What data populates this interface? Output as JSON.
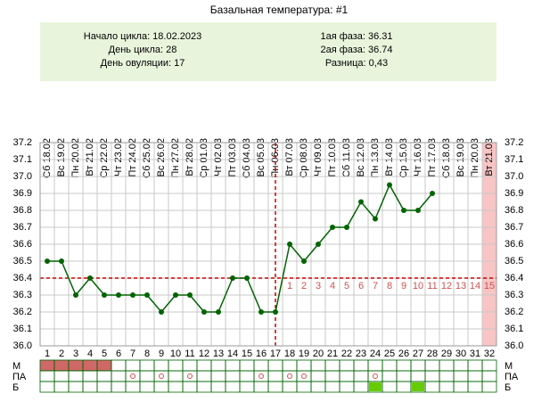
{
  "chart_data": {
    "type": "line",
    "title": "Базальная температура: #1",
    "info": {
      "left": [
        "Начало цикла: 18.02.2023",
        "День цикла: 28",
        "День овуляции: 17"
      ],
      "right": [
        "1ая фаза: 36.31",
        "2ая фаза: 36.74",
        "Разница: 0,43"
      ]
    },
    "categories": [
      "Сб 18.02",
      "Вс 19.02",
      "Пн 20.02",
      "Вт 21.02",
      "Ср 22.02",
      "Чт 23.02",
      "Пт 24.02",
      "Сб 25.02",
      "Вс 26.02",
      "Пн 27.02",
      "Вт 28.02",
      "Ср 01.03",
      "Чт 02.03",
      "Пт 03.03",
      "Сб 04.03",
      "Вс 05.03",
      "Пн 06.03",
      "Вт 07.03",
      "Ср 08.03",
      "Чт 09.03",
      "Пт 10.03",
      "Сб 11.03",
      "Вс 12.03",
      "Пн 13.03",
      "Вт 14.03",
      "Ср 15.03",
      "Чт 16.03",
      "Пт 17.03",
      "Сб 18.03",
      "Вс 19.03",
      "Пн 20.03",
      "Вт 21.03"
    ],
    "x": [
      1,
      2,
      3,
      4,
      5,
      6,
      7,
      8,
      9,
      10,
      11,
      12,
      13,
      14,
      15,
      16,
      17,
      18,
      19,
      20,
      21,
      22,
      23,
      24,
      25,
      26,
      27,
      28,
      29,
      30,
      31,
      32
    ],
    "values": [
      36.5,
      36.5,
      36.3,
      36.4,
      36.3,
      36.3,
      36.3,
      36.3,
      36.2,
      36.3,
      36.3,
      36.2,
      36.2,
      36.4,
      36.4,
      36.2,
      36.2,
      36.6,
      36.5,
      36.6,
      36.7,
      36.7,
      36.85,
      36.75,
      36.95,
      36.8,
      36.8,
      36.9,
      null,
      null,
      null,
      null
    ],
    "color": "#006400",
    "ylim": [
      36.0,
      37.2
    ],
    "yticks": [
      {
        "value": 36.0,
        "label": "36.0"
      },
      36.1,
      36.2,
      36.3,
      36.4,
      36.5,
      36.6,
      36.7,
      36.8,
      36.9,
      {
        "value": 37.0,
        "label": "37.0"
      },
      37.1,
      37.2
    ],
    "grid": true,
    "coverline": 36.4,
    "ovulation_day": 17,
    "phase2_days": [
      1,
      2,
      3,
      4,
      5,
      6,
      7,
      8,
      9,
      10,
      11,
      12,
      13,
      14,
      15
    ],
    "highlight_day": 32,
    "rows": [
      {
        "name": "М",
        "days": [
          1,
          2,
          3,
          4,
          5
        ]
      },
      {
        "name": "ПА",
        "days": [
          7,
          9,
          11,
          16,
          18,
          19,
          24
        ]
      },
      {
        "name": "Б",
        "days": [
          24,
          27
        ]
      }
    ]
  }
}
